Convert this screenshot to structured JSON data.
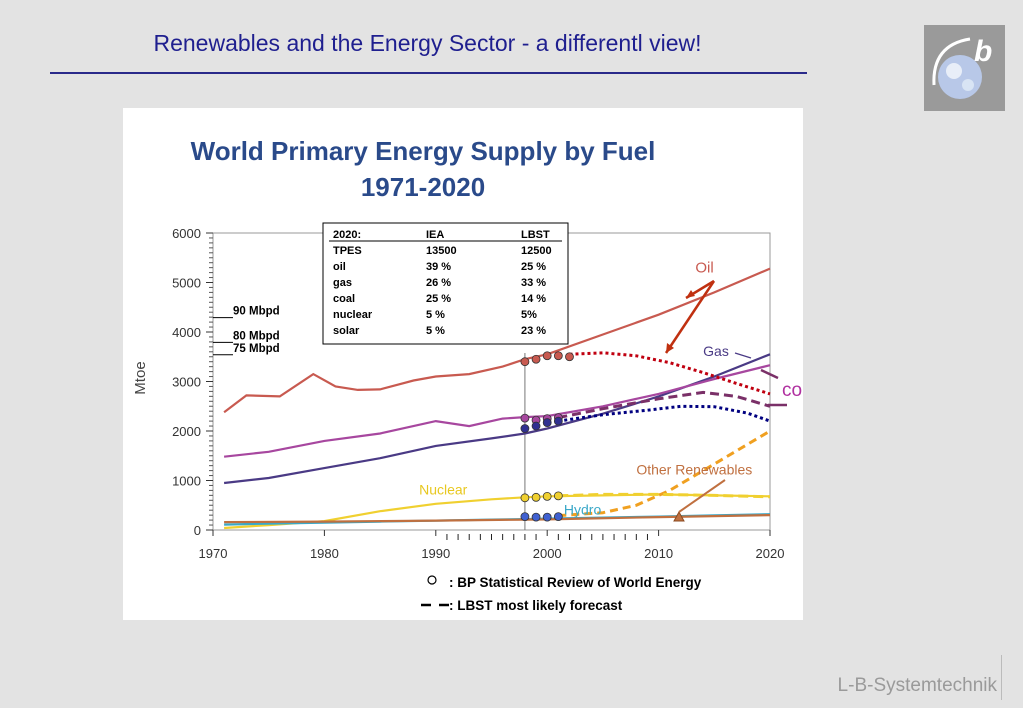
{
  "slide": {
    "title": "Renewables and the Energy Sector - a differentl view!",
    "footer": "L-B-Systemtechnik"
  },
  "colors": {
    "title": "#1f1f8f",
    "oil": "#c85a50",
    "gas": "#4a3a85",
    "coal": "#a7479f",
    "nuclear": "#f0d030",
    "hydro": "#3aa8c8",
    "other_renewables": "#c07040",
    "forecast_oil": "#c00010",
    "forecast_gas": "#000080",
    "forecast_coal": "#7a3068",
    "forecast_solar": "#f0a020"
  },
  "chart_data": {
    "type": "line",
    "title": "World Primary Energy Supply by Fuel",
    "subtitle": "1971-2020",
    "ylabel": "Mtoe",
    "xlim": [
      1970,
      2020
    ],
    "ylim": [
      0,
      6000
    ],
    "x_ticks": [
      1970,
      1980,
      1990,
      2000,
      2010,
      2020
    ],
    "y_ticks": [
      0,
      1000,
      2000,
      3000,
      4000,
      5000,
      6000
    ],
    "series": [
      {
        "name": "Oil",
        "color": "#c85a50",
        "points": [
          [
            1971,
            2380
          ],
          [
            1973,
            2720
          ],
          [
            1976,
            2700
          ],
          [
            1979,
            3150
          ],
          [
            1981,
            2900
          ],
          [
            1983,
            2830
          ],
          [
            1985,
            2840
          ],
          [
            1988,
            3020
          ],
          [
            1990,
            3100
          ],
          [
            1993,
            3150
          ],
          [
            1996,
            3300
          ],
          [
            1998,
            3450
          ],
          [
            2000,
            3550
          ],
          [
            2005,
            3950
          ],
          [
            2010,
            4350
          ],
          [
            2015,
            4800
          ],
          [
            2020,
            5280
          ]
        ]
      },
      {
        "name": "Gas",
        "color": "#4a3a85",
        "points": [
          [
            1971,
            950
          ],
          [
            1975,
            1050
          ],
          [
            1980,
            1250
          ],
          [
            1985,
            1450
          ],
          [
            1990,
            1700
          ],
          [
            1995,
            1850
          ],
          [
            1998,
            1950
          ],
          [
            2000,
            2050
          ],
          [
            2005,
            2350
          ],
          [
            2010,
            2700
          ],
          [
            2015,
            3100
          ],
          [
            2020,
            3550
          ]
        ]
      },
      {
        "name": "",
        "color": "#a7479f",
        "points": [
          [
            1971,
            1480
          ],
          [
            1975,
            1580
          ],
          [
            1980,
            1800
          ],
          [
            1985,
            1950
          ],
          [
            1990,
            2200
          ],
          [
            1993,
            2100
          ],
          [
            1996,
            2250
          ],
          [
            1998,
            2280
          ],
          [
            2000,
            2300
          ],
          [
            2005,
            2500
          ],
          [
            2010,
            2750
          ],
          [
            2015,
            3050
          ],
          [
            2020,
            3330
          ]
        ]
      },
      {
        "name": "Nuclear",
        "color": "#f0d030",
        "points": [
          [
            1971,
            40
          ],
          [
            1975,
            100
          ],
          [
            1980,
            180
          ],
          [
            1985,
            380
          ],
          [
            1990,
            530
          ],
          [
            1995,
            620
          ],
          [
            1998,
            660
          ],
          [
            2000,
            680
          ],
          [
            2005,
            700
          ],
          [
            2010,
            720
          ],
          [
            2015,
            700
          ],
          [
            2020,
            680
          ]
        ]
      },
      {
        "name": "Hydro",
        "color": "#3aa8c8",
        "points": [
          [
            1971,
            110
          ],
          [
            1975,
            130
          ],
          [
            1980,
            150
          ],
          [
            1985,
            170
          ],
          [
            1990,
            190
          ],
          [
            1995,
            210
          ],
          [
            1998,
            220
          ],
          [
            2000,
            230
          ],
          [
            2005,
            250
          ],
          [
            2010,
            270
          ],
          [
            2015,
            295
          ],
          [
            2020,
            320
          ]
        ]
      },
      {
        "name": "Other Renewables",
        "color": "#c07040",
        "points": [
          [
            1971,
            160
          ],
          [
            1980,
            170
          ],
          [
            1990,
            190
          ],
          [
            1998,
            210
          ],
          [
            2000,
            215
          ],
          [
            2010,
            260
          ],
          [
            2020,
            300
          ]
        ]
      }
    ],
    "bp_points": [
      {
        "fuel": "oil",
        "color": "#c85a50",
        "points": [
          [
            1998,
            3400
          ],
          [
            1999,
            3450
          ],
          [
            2000,
            3520
          ],
          [
            2001,
            3520
          ],
          [
            2002,
            3500
          ]
        ]
      },
      {
        "fuel": "coal",
        "color": "#a7479f",
        "points": [
          [
            1998,
            2260
          ],
          [
            1999,
            2220
          ],
          [
            2000,
            2250
          ],
          [
            2001,
            2270
          ]
        ]
      },
      {
        "fuel": "gas",
        "color": "#303090",
        "points": [
          [
            1998,
            2050
          ],
          [
            1999,
            2100
          ],
          [
            2000,
            2170
          ],
          [
            2001,
            2200
          ]
        ]
      },
      {
        "fuel": "nuclear",
        "color": "#f0d030",
        "points": [
          [
            1998,
            650
          ],
          [
            1999,
            660
          ],
          [
            2000,
            680
          ],
          [
            2001,
            690
          ]
        ]
      },
      {
        "fuel": "hydro",
        "color": "#4060d0",
        "points": [
          [
            1998,
            270
          ],
          [
            1999,
            260
          ],
          [
            2000,
            260
          ],
          [
            2001,
            270
          ]
        ]
      }
    ],
    "forecasts": [
      {
        "fuel": "oil",
        "color": "#c00010",
        "dash": "3 3",
        "points": [
          [
            2002,
            3550
          ],
          [
            2005,
            3580
          ],
          [
            2008,
            3520
          ],
          [
            2011,
            3380
          ],
          [
            2014,
            3180
          ],
          [
            2017,
            2960
          ],
          [
            2020,
            2750
          ]
        ]
      },
      {
        "fuel": "gas",
        "color": "#000080",
        "dash": "3 3",
        "points": [
          [
            2001,
            2200
          ],
          [
            2005,
            2330
          ],
          [
            2009,
            2420
          ],
          [
            2012,
            2500
          ],
          [
            2015,
            2490
          ],
          [
            2018,
            2360
          ],
          [
            2020,
            2200
          ]
        ]
      },
      {
        "fuel": "coal",
        "color": "#7a3068",
        "dash": "9 5",
        "points": [
          [
            2001,
            2270
          ],
          [
            2005,
            2450
          ],
          [
            2010,
            2650
          ],
          [
            2014,
            2780
          ],
          [
            2017,
            2700
          ],
          [
            2020,
            2500
          ]
        ]
      },
      {
        "fuel": "solar",
        "color": "#f0a020",
        "dash": "8 5",
        "points": [
          [
            2001,
            290
          ],
          [
            2005,
            350
          ],
          [
            2008,
            500
          ],
          [
            2011,
            800
          ],
          [
            2014,
            1200
          ],
          [
            2017,
            1600
          ],
          [
            2020,
            2000
          ]
        ]
      },
      {
        "fuel": "nuclear",
        "color": "#f0d030",
        "dash": "10 5",
        "points": [
          [
            2001,
            690
          ],
          [
            2005,
            720
          ],
          [
            2010,
            720
          ],
          [
            2015,
            700
          ],
          [
            2020,
            670
          ]
        ]
      }
    ],
    "oil_rate_labels": [
      {
        "label": "90 Mbpd",
        "value": 4350
      },
      {
        "label": "80 Mbpd",
        "value": 3850
      },
      {
        "label": "75 Mbpd",
        "value": 3600
      }
    ],
    "inline_labels": [
      "Oil",
      "Gas",
      "Nuclear",
      "Hydro",
      "Other Renewables"
    ],
    "coal_label": "coal",
    "table": {
      "header": [
        "2020:",
        "IEA",
        "LBST"
      ],
      "rows": [
        [
          "TPES",
          "13500",
          "12500"
        ],
        [
          "oil",
          "39 %",
          "25 %"
        ],
        [
          "gas",
          "26 %",
          "33 %"
        ],
        [
          "coal",
          "25 %",
          "14 %"
        ],
        [
          "nuclear",
          "5 %",
          "5%"
        ],
        [
          "solar",
          "5 %",
          "23 %"
        ]
      ]
    },
    "legend": [
      {
        "symbol": "circle",
        "text": ": BP Statistical Review of World Energy"
      },
      {
        "symbol": "dashes",
        "text": ": LBST most likely forecast"
      }
    ]
  }
}
